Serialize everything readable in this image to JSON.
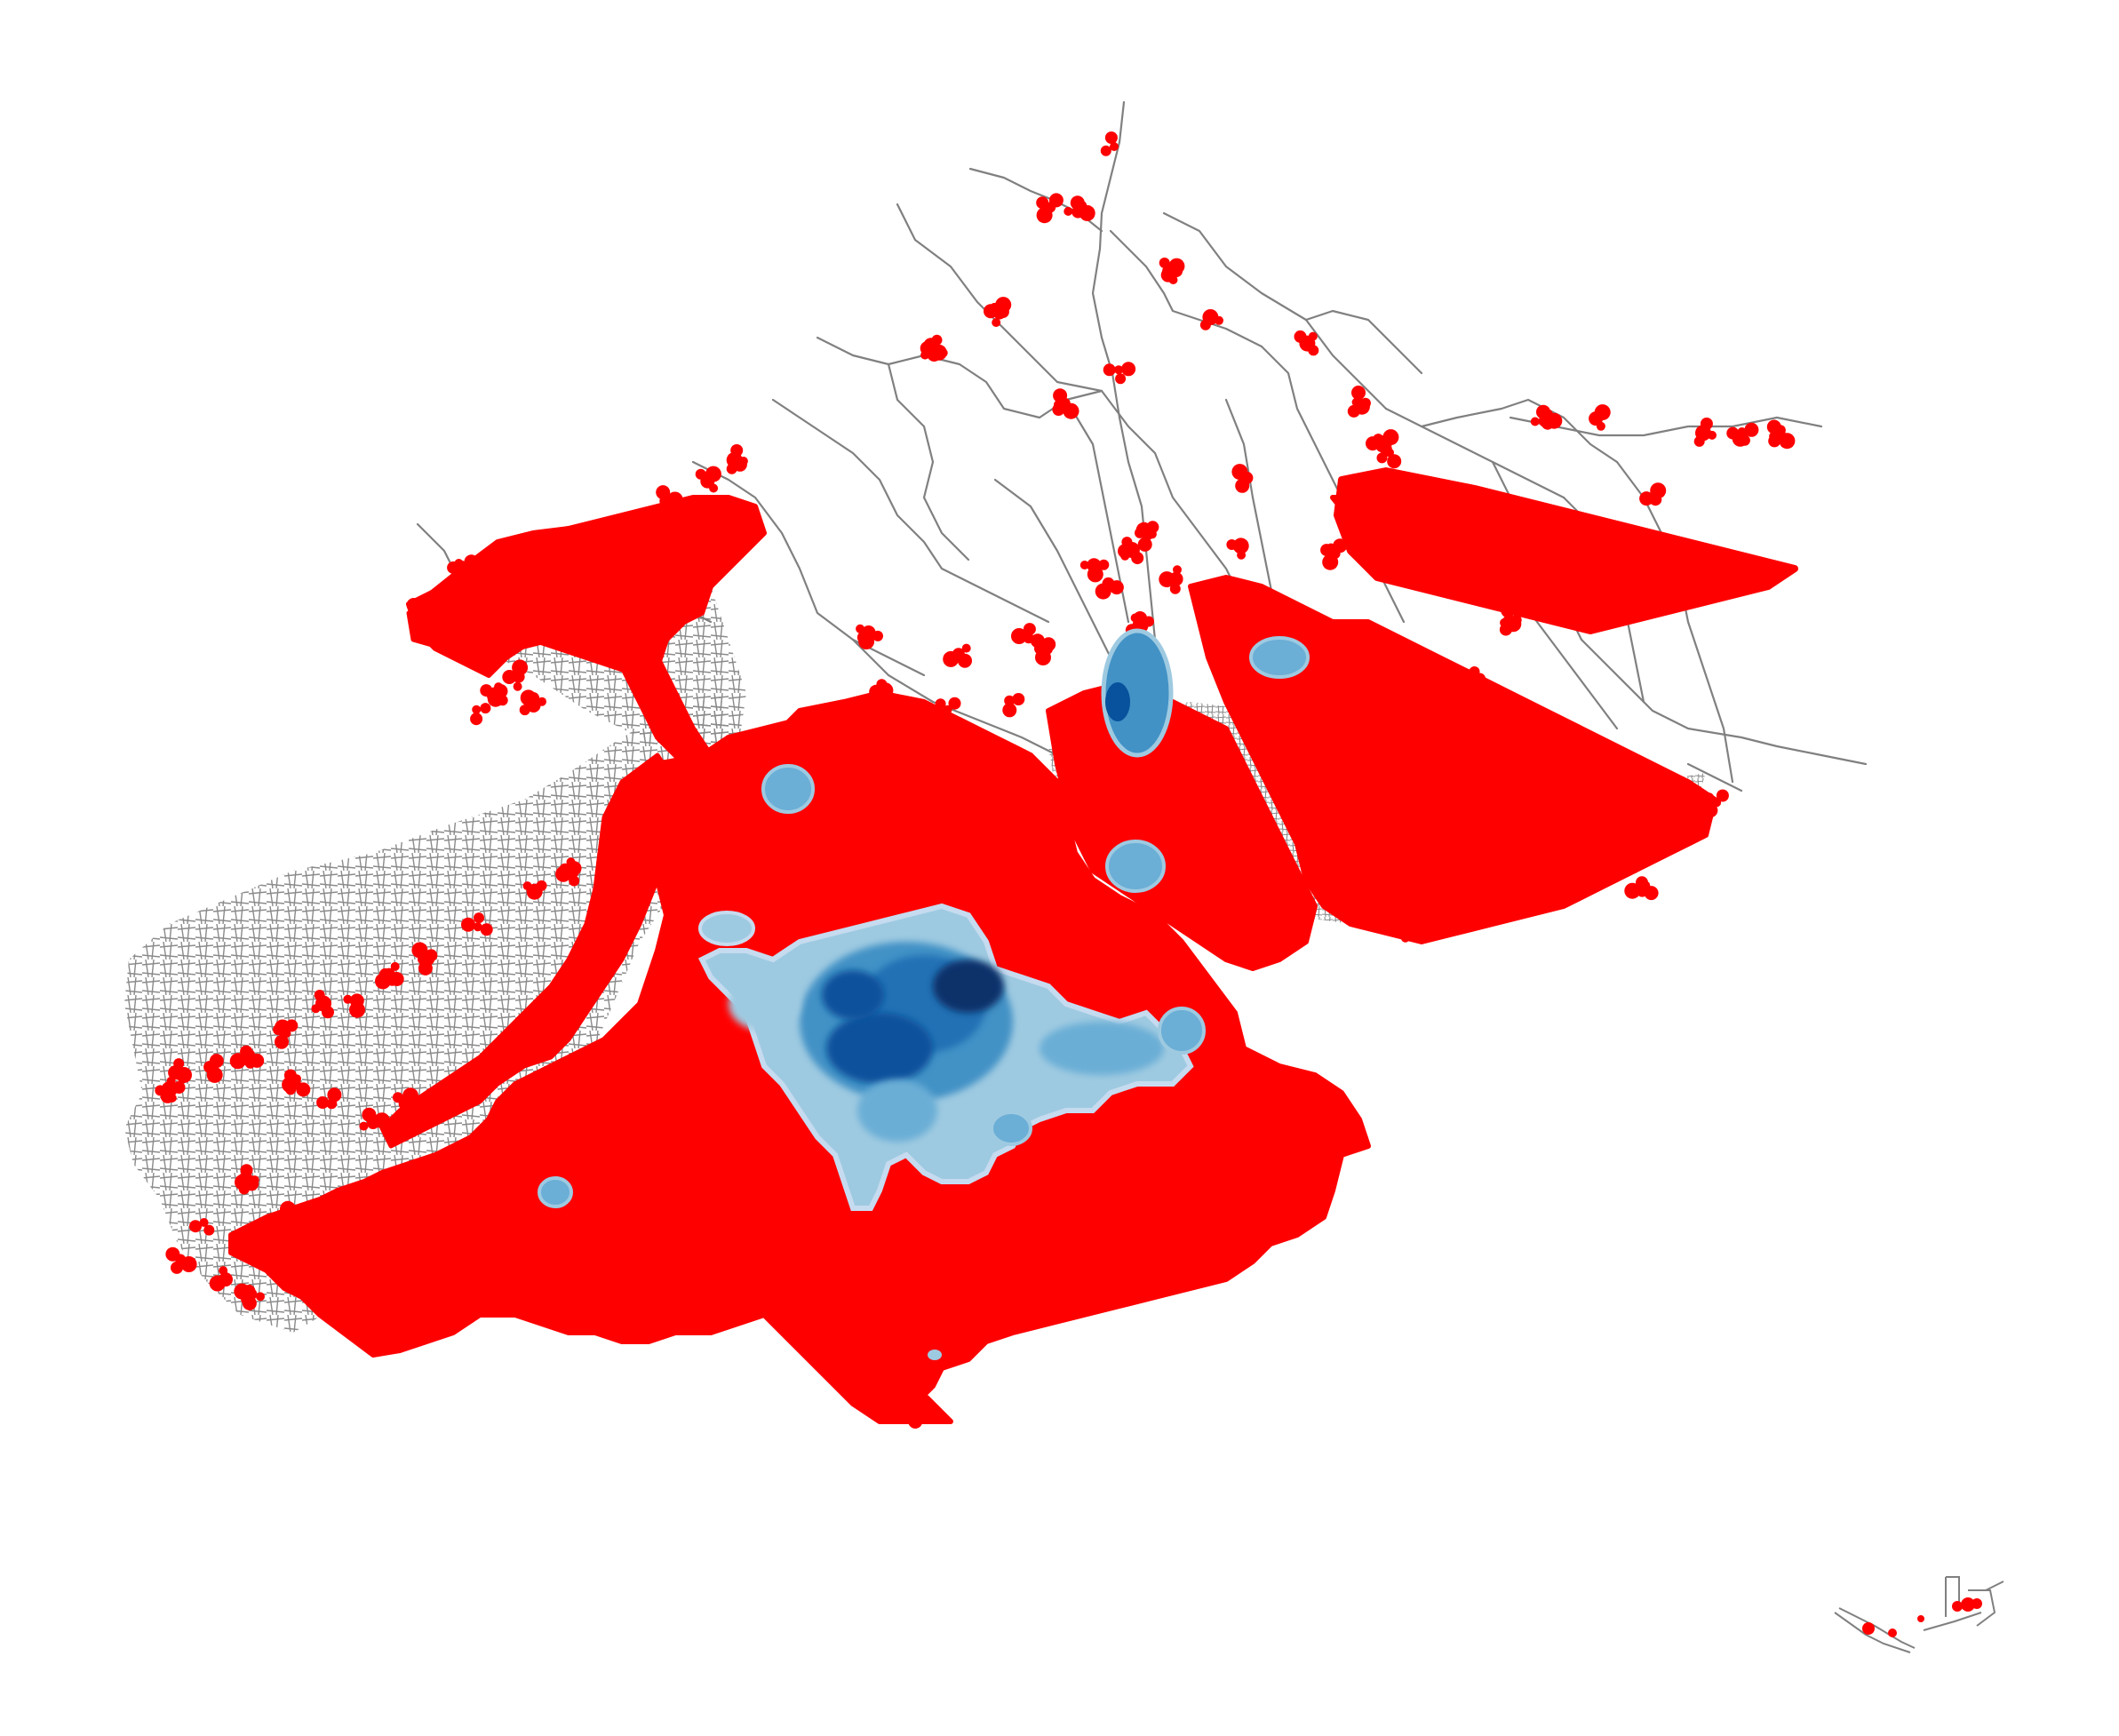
{
  "map": {
    "background": "#ffffff",
    "layers": [
      {
        "name": "road-network",
        "color": "#808080"
      },
      {
        "name": "coverage-points",
        "color": "#ff0000"
      },
      {
        "name": "density-surface",
        "colors": [
          "#c6dbef",
          "#6baed6",
          "#2171b5",
          "#08306b"
        ]
      }
    ],
    "density_scale": "blues",
    "legend": null,
    "title": null
  }
}
